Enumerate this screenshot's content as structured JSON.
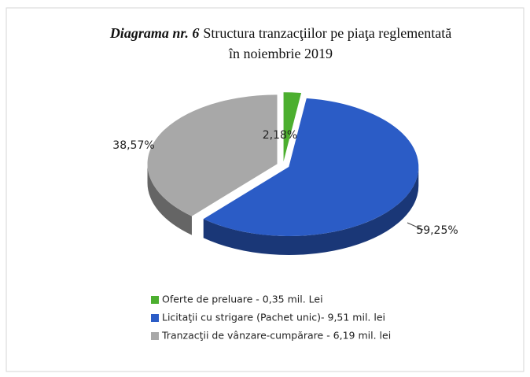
{
  "chart_data": {
    "type": "pie",
    "title_label": "Diagrama nr. 6",
    "title": "Structura tranzacţiilor pe piaţa reglementată",
    "subtitle": "în noiembrie  2019",
    "categories": [
      "Oferte de preluare - 0,35 mil. Lei",
      "Licitaţii cu strigare (Pachet unic)- 9,51 mil. lei",
      "Tranzacţii de vânzare-cumpărare - 6,19 mil. lei"
    ],
    "values": [
      2.18,
      59.25,
      38.57
    ],
    "value_labels": [
      "2,18%",
      "59,25%",
      "38,57%"
    ],
    "colors": [
      "#4caf2f",
      "#2b5cc6",
      "#a8a8a8"
    ],
    "legend": "bottom"
  }
}
